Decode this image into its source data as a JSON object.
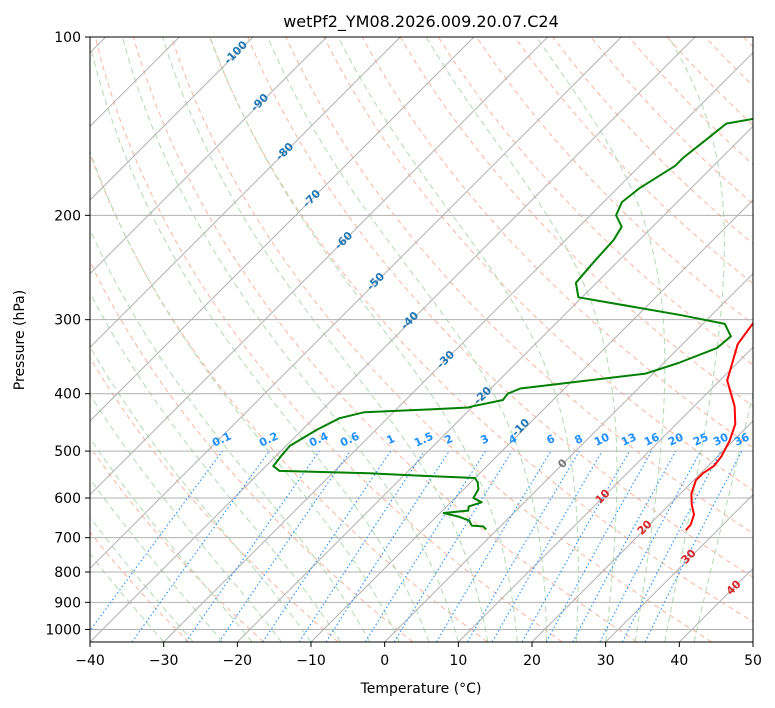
{
  "chart_data": {
    "type": "line",
    "title": "wetPf2_YM08.2026.009.20.07.C24",
    "xlabel": "Temperature (°C)",
    "ylabel": "Pressure (hPa)",
    "xlim": [
      -40,
      50
    ],
    "ylim": [
      1050,
      100
    ],
    "x_ticks": [
      "−40",
      "−30",
      "−20",
      "−10",
      "0",
      "10",
      "20",
      "30",
      "40",
      "50"
    ],
    "y_ticks": [
      {
        "p": 100,
        "label": "100"
      },
      {
        "p": 200,
        "label": "200"
      },
      {
        "p": 300,
        "label": "300"
      },
      {
        "p": 400,
        "label": "400"
      },
      {
        "p": 500,
        "label": "500"
      },
      {
        "p": 600,
        "label": "600"
      },
      {
        "p": 700,
        "label": "700"
      },
      {
        "p": 800,
        "label": "800"
      },
      {
        "p": 900,
        "label": "900"
      },
      {
        "p": 1000,
        "label": "1000"
      }
    ],
    "colors": {
      "temperature": "#ff0000",
      "dewpoint": "#008000",
      "isotherm_grid": "#b0b0b0",
      "dry_adiabat": "#ffb49c",
      "moist_adiabat": "#b0dcb0",
      "mixing_ratio": "#1e90ff",
      "wetbulb_label": "#1f77b4",
      "dry_label": "#d62728"
    },
    "series": [
      {
        "name": "temperature",
        "points": [
          [
            3.5,
            100
          ],
          [
            2.5,
            110
          ],
          [
            1.6,
            118
          ],
          [
            0.7,
            130
          ],
          [
            0.4,
            145
          ],
          [
            0.8,
            165
          ],
          [
            2.6,
            180
          ],
          [
            5.0,
            192
          ],
          [
            5.6,
            202
          ],
          [
            5.0,
            214
          ],
          [
            4.3,
            228
          ],
          [
            5.3,
            250
          ],
          [
            6.2,
            272
          ],
          [
            6.6,
            300
          ],
          [
            7.5,
            330
          ],
          [
            11.0,
            380
          ],
          [
            15.5,
            420
          ],
          [
            18.0,
            450
          ],
          [
            19.5,
            480
          ],
          [
            20.5,
            510
          ],
          [
            20.8,
            530
          ],
          [
            20.3,
            545
          ],
          [
            20.3,
            560
          ],
          [
            21.5,
            590
          ],
          [
            23.0,
            615
          ],
          [
            24.7,
            640
          ],
          [
            25.6,
            665
          ],
          [
            25.7,
            680
          ]
        ]
      },
      {
        "name": "dewpoint",
        "points": [
          [
            0.5,
            100
          ],
          [
            -3.0,
            106
          ],
          [
            -10.0,
            120
          ],
          [
            -18.0,
            135
          ],
          [
            -24.0,
            140
          ],
          [
            -24.6,
            150
          ],
          [
            -25.2,
            160
          ],
          [
            -25.2,
            165
          ],
          [
            -27.0,
            180
          ],
          [
            -27.5,
            190
          ],
          [
            -26.5,
            200
          ],
          [
            -24.2,
            209
          ],
          [
            -23.5,
            220
          ],
          [
            -23.2,
            240
          ],
          [
            -22.8,
            260
          ],
          [
            -20.5,
            275
          ],
          [
            -4.0,
            295
          ],
          [
            3.0,
            305
          ],
          [
            5.5,
            320
          ],
          [
            5.2,
            335
          ],
          [
            2.0,
            355
          ],
          [
            -1.0,
            370
          ],
          [
            -16.0,
            392
          ],
          [
            -17.0,
            400
          ],
          [
            -16.8,
            410
          ],
          [
            -20.0,
            420
          ],
          [
            -20.5,
            422
          ],
          [
            -25.0,
            425
          ],
          [
            -34.0,
            430
          ],
          [
            -36.5,
            440
          ],
          [
            -38.0,
            460
          ],
          [
            -39.5,
            490
          ],
          [
            -39.3,
            510
          ],
          [
            -39.0,
            530
          ],
          [
            -37.5,
            540
          ],
          [
            -25.0,
            545
          ],
          [
            -18.0,
            550
          ],
          [
            -10.0,
            555
          ],
          [
            -9.0,
            565
          ],
          [
            -8.0,
            580
          ],
          [
            -7.5,
            600
          ],
          [
            -5.8,
            610
          ],
          [
            -7.0,
            620
          ],
          [
            -6.5,
            630
          ],
          [
            -9.5,
            636
          ],
          [
            -7.0,
            645
          ],
          [
            -5.0,
            655
          ],
          [
            -4.0,
            668
          ],
          [
            -2.3,
            670
          ],
          [
            -1.5,
            678
          ]
        ]
      }
    ],
    "wetbulb_labels": [
      "-100",
      "-90",
      "-80",
      "-70",
      "-60",
      "-50",
      "-40",
      "-30",
      "-20",
      "-10",
      "0"
    ],
    "mixing_ratio_labels": [
      "0.1",
      "0.2",
      "0.4",
      "0.6",
      "1",
      "1.5",
      "2",
      "3",
      "4",
      "6",
      "8",
      "10",
      "13",
      "16",
      "20",
      "25",
      "30",
      "36"
    ],
    "dry_labels": [
      "10",
      "20",
      "30",
      "40"
    ]
  }
}
